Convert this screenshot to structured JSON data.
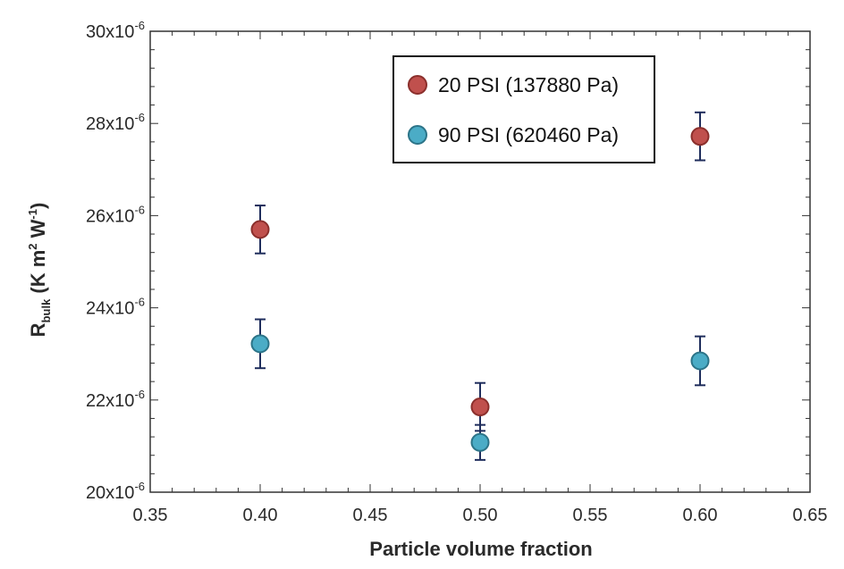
{
  "chart_data": {
    "type": "scatter",
    "title": "",
    "xlabel": "Particle volume fraction",
    "ylabel": {
      "main": "R",
      "sub": "bulk",
      "unit_open": " (K m",
      "unit_sup1": "2",
      "unit_mid": " W",
      "unit_sup2": "-1",
      "unit_close": ")"
    },
    "xlim": [
      0.35,
      0.65
    ],
    "ylim": [
      20,
      30
    ],
    "y_unit_scale": 1e-06,
    "x_ticks": [
      "0.35",
      "0.40",
      "0.45",
      "0.50",
      "0.55",
      "0.60",
      "0.65"
    ],
    "y_ticks": [
      {
        "value": 20,
        "base": "20x10",
        "exp": "-6"
      },
      {
        "value": 22,
        "base": "22x10",
        "exp": "-6"
      },
      {
        "value": 24,
        "base": "24x10",
        "exp": "-6"
      },
      {
        "value": 26,
        "base": "26x10",
        "exp": "-6"
      },
      {
        "value": 28,
        "base": "28x10",
        "exp": "-6"
      },
      {
        "value": 30,
        "base": "30x10",
        "exp": "-6"
      }
    ],
    "series": [
      {
        "name": "20 PSI (137880 Pa)",
        "color": "#c0504d",
        "stroke": "#8b2f2c",
        "x": [
          0.4,
          0.5,
          0.6
        ],
        "y": [
          25.7,
          21.85,
          27.72
        ],
        "err": [
          0.52,
          0.52,
          0.52
        ]
      },
      {
        "name": "90 PSI (620460 Pa)",
        "color": "#4bacc6",
        "stroke": "#2c7488",
        "x": [
          0.4,
          0.5,
          0.6
        ],
        "y": [
          23.22,
          21.08,
          22.85
        ],
        "err": [
          0.53,
          0.38,
          0.53
        ]
      }
    ],
    "legend_position": "top-center"
  }
}
